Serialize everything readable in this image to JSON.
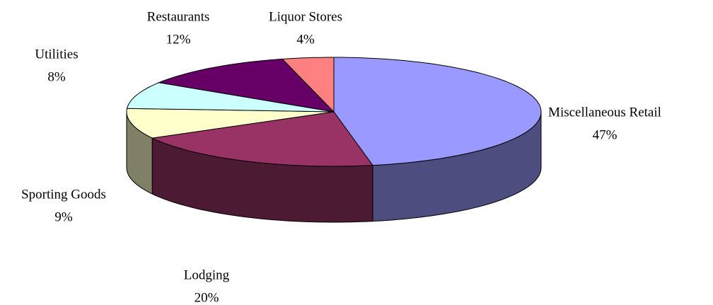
{
  "chart_data": {
    "type": "pie",
    "categories": [
      "Miscellaneous Retail",
      "Lodging",
      "Sporting Goods",
      "Utilities",
      "Restaurants",
      "Liquor Stores"
    ],
    "values": [
      47,
      20,
      9,
      8,
      12,
      4
    ],
    "value_labels": [
      "47%",
      "20%",
      "9%",
      "8%",
      "12%",
      "4%"
    ],
    "colors": [
      "#9999ff",
      "#993366",
      "#ffffcc",
      "#ccffff",
      "#660066",
      "#ff8080"
    ]
  }
}
